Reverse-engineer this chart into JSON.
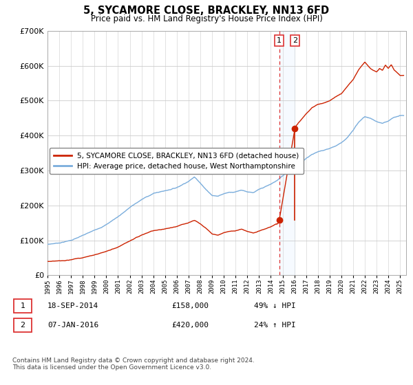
{
  "title": "5, SYCAMORE CLOSE, BRACKLEY, NN13 6FD",
  "subtitle": "Price paid vs. HM Land Registry's House Price Index (HPI)",
  "legend_line1": "5, SYCAMORE CLOSE, BRACKLEY, NN13 6FD (detached house)",
  "legend_line2": "HPI: Average price, detached house, West Northamptonshire",
  "annotation1_date": "18-SEP-2014",
  "annotation1_price": "£158,000",
  "annotation1_hpi": "49% ↓ HPI",
  "annotation2_date": "07-JAN-2016",
  "annotation2_price": "£420,000",
  "annotation2_hpi": "24% ↑ HPI",
  "footer": "Contains HM Land Registry data © Crown copyright and database right 2024.\nThis data is licensed under the Open Government Licence v3.0.",
  "hpi_color": "#7aaddc",
  "price_color": "#cc2200",
  "vline_color": "#dd3333",
  "shade_color": "#ddeeff",
  "background_color": "#ffffff",
  "grid_color": "#cccccc",
  "ylim": [
    0,
    700000
  ],
  "yticks": [
    0,
    100000,
    200000,
    300000,
    400000,
    500000,
    600000,
    700000
  ],
  "sale1_x": 2014.72,
  "sale1_y": 158000,
  "sale2_x": 2016.05,
  "sale2_y": 420000,
  "xmin": 1995,
  "xmax": 2025.5
}
